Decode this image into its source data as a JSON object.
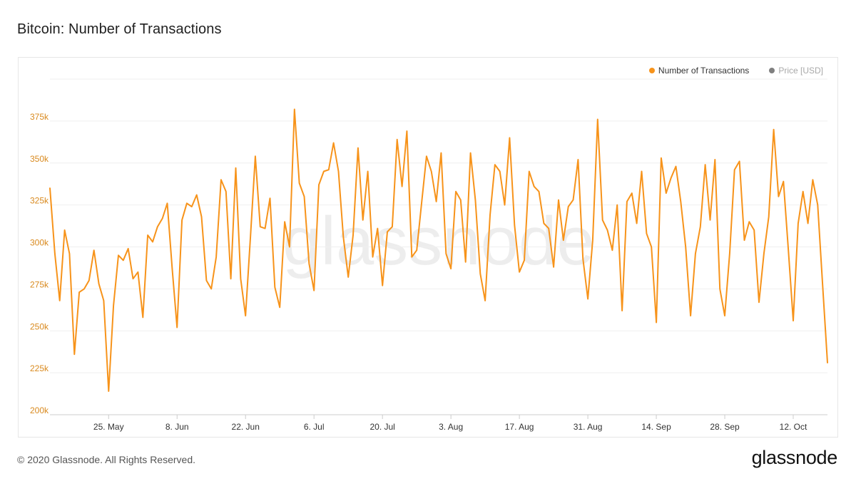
{
  "title": "Bitcoin: Number of Transactions",
  "legend": [
    {
      "label": "Number of Transactions",
      "color": "#f7931a",
      "active": true
    },
    {
      "label": "Price [USD]",
      "color": "#7f7f7f",
      "active": false
    }
  ],
  "watermark": "glassnode",
  "footer": {
    "copyright": "© 2020 Glassnode. All Rights Reserved.",
    "logo": "glassnode"
  },
  "chart_data": {
    "type": "line",
    "title": "Bitcoin: Number of Transactions",
    "xlabel": "",
    "ylabel": "",
    "x_start": "2020-05-13",
    "x_end": "2020-10-19",
    "xticks": [
      {
        "date": "2020-05-25",
        "label": "25. May"
      },
      {
        "date": "2020-06-08",
        "label": "8. Jun"
      },
      {
        "date": "2020-06-22",
        "label": "22. Jun"
      },
      {
        "date": "2020-07-06",
        "label": "6. Jul"
      },
      {
        "date": "2020-07-20",
        "label": "20. Jul"
      },
      {
        "date": "2020-08-03",
        "label": "3. Aug"
      },
      {
        "date": "2020-08-17",
        "label": "17. Aug"
      },
      {
        "date": "2020-08-31",
        "label": "31. Aug"
      },
      {
        "date": "2020-09-14",
        "label": "14. Sep"
      },
      {
        "date": "2020-09-28",
        "label": "28. Sep"
      },
      {
        "date": "2020-10-12",
        "label": "12. Oct"
      }
    ],
    "yticks": [
      {
        "value": 200000,
        "label": "200k"
      },
      {
        "value": 225000,
        "label": "225k"
      },
      {
        "value": 250000,
        "label": "250k"
      },
      {
        "value": 275000,
        "label": "275k"
      },
      {
        "value": 300000,
        "label": "300k"
      },
      {
        "value": 325000,
        "label": "325k"
      },
      {
        "value": 350000,
        "label": "350k"
      },
      {
        "value": 375000,
        "label": "375k"
      }
    ],
    "ylim": [
      200000,
      400000
    ],
    "grid": true,
    "legend_position": "top-right",
    "series": [
      {
        "name": "Number of Transactions",
        "color": "#f7931a",
        "x": [
          "2020-05-13",
          "2020-05-14",
          "2020-05-15",
          "2020-05-16",
          "2020-05-17",
          "2020-05-18",
          "2020-05-19",
          "2020-05-20",
          "2020-05-21",
          "2020-05-22",
          "2020-05-23",
          "2020-05-24",
          "2020-05-25",
          "2020-05-26",
          "2020-05-27",
          "2020-05-28",
          "2020-05-29",
          "2020-05-30",
          "2020-05-31",
          "2020-06-01",
          "2020-06-02",
          "2020-06-03",
          "2020-06-04",
          "2020-06-05",
          "2020-06-06",
          "2020-06-07",
          "2020-06-08",
          "2020-06-09",
          "2020-06-10",
          "2020-06-11",
          "2020-06-12",
          "2020-06-13",
          "2020-06-14",
          "2020-06-15",
          "2020-06-16",
          "2020-06-17",
          "2020-06-18",
          "2020-06-19",
          "2020-06-20",
          "2020-06-21",
          "2020-06-22",
          "2020-06-23",
          "2020-06-24",
          "2020-06-25",
          "2020-06-26",
          "2020-06-27",
          "2020-06-28",
          "2020-06-29",
          "2020-06-30",
          "2020-07-01",
          "2020-07-02",
          "2020-07-03",
          "2020-07-04",
          "2020-07-05",
          "2020-07-06",
          "2020-07-07",
          "2020-07-08",
          "2020-07-09",
          "2020-07-10",
          "2020-07-11",
          "2020-07-12",
          "2020-07-13",
          "2020-07-14",
          "2020-07-15",
          "2020-07-16",
          "2020-07-17",
          "2020-07-18",
          "2020-07-19",
          "2020-07-20",
          "2020-07-21",
          "2020-07-22",
          "2020-07-23",
          "2020-07-24",
          "2020-07-25",
          "2020-07-26",
          "2020-07-27",
          "2020-07-28",
          "2020-07-29",
          "2020-07-30",
          "2020-07-31",
          "2020-08-01",
          "2020-08-02",
          "2020-08-03",
          "2020-08-04",
          "2020-08-05",
          "2020-08-06",
          "2020-08-07",
          "2020-08-08",
          "2020-08-09",
          "2020-08-10",
          "2020-08-11",
          "2020-08-12",
          "2020-08-13",
          "2020-08-14",
          "2020-08-15",
          "2020-08-16",
          "2020-08-17",
          "2020-08-18",
          "2020-08-19",
          "2020-08-20",
          "2020-08-21",
          "2020-08-22",
          "2020-08-23",
          "2020-08-24",
          "2020-08-25",
          "2020-08-26",
          "2020-08-27",
          "2020-08-28",
          "2020-08-29",
          "2020-08-30",
          "2020-08-31",
          "2020-09-01",
          "2020-09-02",
          "2020-09-03",
          "2020-09-04",
          "2020-09-05",
          "2020-09-06",
          "2020-09-07",
          "2020-09-08",
          "2020-09-09",
          "2020-09-10",
          "2020-09-11",
          "2020-09-12",
          "2020-09-13",
          "2020-09-14",
          "2020-09-15",
          "2020-09-16",
          "2020-09-17",
          "2020-09-18",
          "2020-09-19",
          "2020-09-20",
          "2020-09-21",
          "2020-09-22",
          "2020-09-23",
          "2020-09-24",
          "2020-09-25",
          "2020-09-26",
          "2020-09-27",
          "2020-09-28",
          "2020-09-29",
          "2020-09-30",
          "2020-10-01",
          "2020-10-02",
          "2020-10-03",
          "2020-10-04",
          "2020-10-05",
          "2020-10-06",
          "2020-10-07",
          "2020-10-08",
          "2020-10-09",
          "2020-10-10",
          "2020-10-11",
          "2020-10-12",
          "2020-10-13",
          "2020-10-14",
          "2020-10-15",
          "2020-10-16",
          "2020-10-17",
          "2020-10-18",
          "2020-10-19"
        ],
        "values": [
          335000,
          296000,
          268000,
          310000,
          296000,
          236000,
          273000,
          275000,
          280000,
          298000,
          278000,
          268000,
          214000,
          265000,
          295000,
          292000,
          299000,
          281000,
          285000,
          258000,
          307000,
          303000,
          312000,
          317000,
          326000,
          287000,
          252000,
          316000,
          326000,
          324000,
          331000,
          318000,
          280000,
          275000,
          294000,
          340000,
          333000,
          281000,
          347000,
          281000,
          259000,
          306000,
          354000,
          312000,
          311000,
          329000,
          276000,
          264000,
          315000,
          300000,
          382000,
          338000,
          330000,
          290000,
          274000,
          337000,
          345000,
          346000,
          362000,
          345000,
          306000,
          282000,
          307000,
          359000,
          316000,
          345000,
          294000,
          311000,
          277000,
          309000,
          312000,
          364000,
          336000,
          369000,
          294000,
          298000,
          326000,
          354000,
          345000,
          327000,
          356000,
          296000,
          287000,
          333000,
          328000,
          291000,
          356000,
          328000,
          284000,
          268000,
          319000,
          349000,
          345000,
          325000,
          365000,
          313000,
          285000,
          292000,
          345000,
          336000,
          333000,
          314000,
          311000,
          288000,
          328000,
          304000,
          324000,
          328000,
          352000,
          293000,
          269000,
          304000,
          376000,
          316000,
          310000,
          298000,
          325000,
          262000,
          327000,
          332000,
          314000,
          345000,
          308000,
          300000,
          255000,
          353000,
          332000,
          341000,
          348000,
          327000,
          300000,
          259000,
          296000,
          312000,
          349000,
          316000,
          352000,
          275000,
          259000,
          296000,
          346000,
          351000,
          304000,
          315000,
          310000,
          267000,
          296000,
          318000,
          370000,
          330000,
          339000,
          298000,
          256000,
          314000,
          333000,
          314000,
          340000,
          325000,
          278000,
          231000
        ]
      }
    ]
  }
}
